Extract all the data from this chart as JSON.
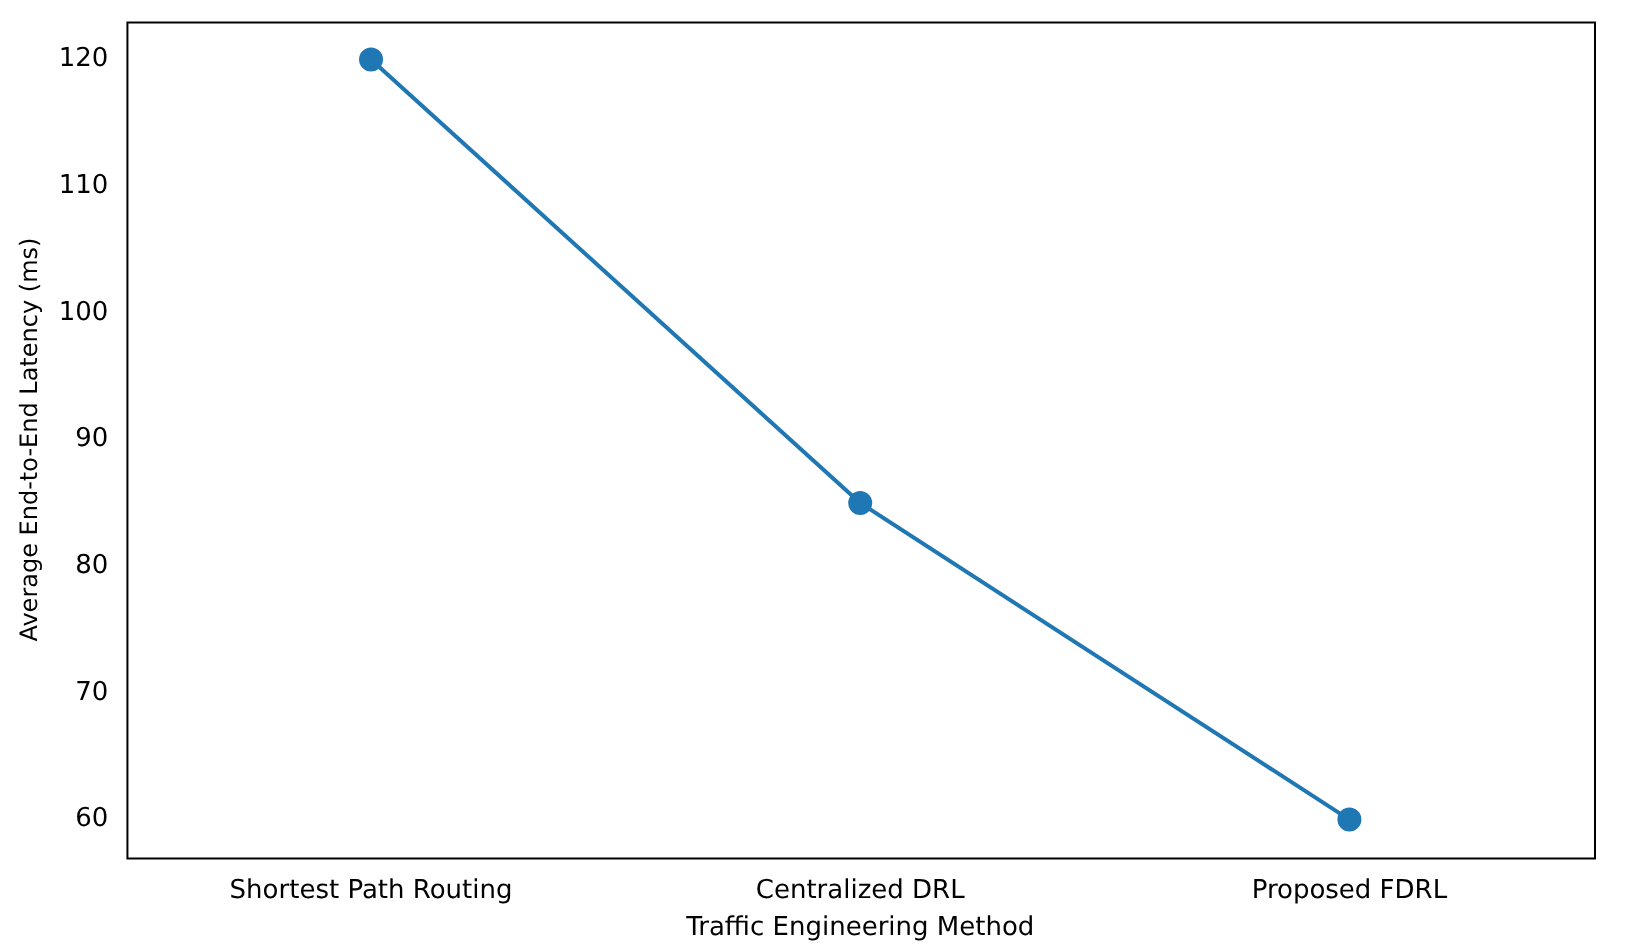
{
  "chart_data": {
    "type": "line",
    "xlabel": "Traffic Engineering Method",
    "ylabel": "Average End-to-End Latency (ms)",
    "categories": [
      "Shortest Path Routing",
      "Centralized DRL",
      "Proposed FDRL"
    ],
    "series": [
      {
        "color": "#1f77b4",
        "values": [
          120,
          85,
          60
        ]
      }
    ],
    "ylim": [
      57,
      123
    ],
    "yticks": [
      60,
      70,
      80,
      90,
      100,
      110,
      120
    ],
    "grid": false,
    "legend": false,
    "marker": "circle",
    "line_style": "solid"
  }
}
